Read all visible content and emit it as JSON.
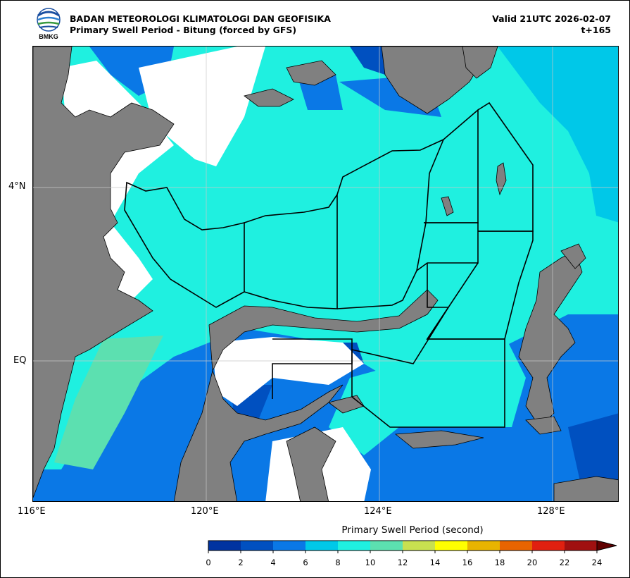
{
  "header": {
    "agency": "BADAN METEOROLOGI KLIMATOLOGI DAN GEOFISIKA",
    "product": "Primary Swell Period - Bitung (forced by GFS)",
    "valid": "Valid 21UTC 2026-02-07",
    "lead": "t+165",
    "logo_text": "BMKG"
  },
  "axes": {
    "x_ticks": [
      "116°E",
      "120°E",
      "124°E",
      "128°E"
    ],
    "y_ticks": [
      "4°N",
      "EQ"
    ]
  },
  "colorbar": {
    "title": "Primary Swell Period (second)",
    "labels": [
      "0",
      "2",
      "4",
      "6",
      "8",
      "10",
      "12",
      "14",
      "16",
      "18",
      "20",
      "22",
      "24"
    ],
    "colors": [
      "#0033a0",
      "#0050c0",
      "#0a78e6",
      "#00c8e8",
      "#1ff0e0",
      "#5ce0b0",
      "#c8e050",
      "#ffff00",
      "#e8b400",
      "#e86400",
      "#e02010",
      "#a01010",
      "#600000"
    ]
  },
  "map_colors": {
    "land": "#808080",
    "no_data": "#ffffff",
    "period_8_10": "#1ff0e0",
    "period_6_8": "#00c8e8",
    "period_4_6": "#0a78e6",
    "period_2_4": "#0050c0",
    "period_10_12": "#5ce0b0",
    "zone_lines": "#000000"
  }
}
